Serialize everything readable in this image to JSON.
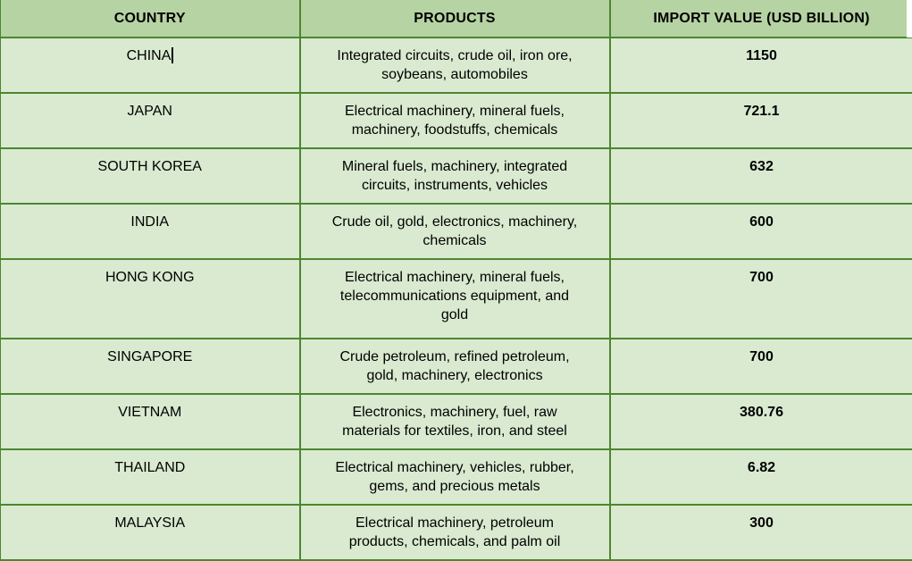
{
  "table": {
    "columns": [
      "COUNTRY",
      "PRODUCTS",
      "IMPORT VALUE (USD BILLION)"
    ],
    "rows": [
      {
        "country": "CHINA",
        "products": "Integrated circuits, crude oil, iron ore,\nsoybeans, automobiles",
        "value": "1150"
      },
      {
        "country": "JAPAN",
        "products": "Electrical machinery, mineral fuels,\nmachinery, foodstuffs, chemicals",
        "value": "721.1"
      },
      {
        "country": "SOUTH KOREA",
        "products": "Mineral fuels, machinery, integrated\ncircuits, instruments, vehicles",
        "value": "632"
      },
      {
        "country": "INDIA",
        "products": "Crude oil, gold, electronics, machinery,\nchemicals",
        "value": "600"
      },
      {
        "country": "HONG KONG",
        "products": "Electrical machinery, mineral fuels,\ntelecommunications equipment, and\ngold",
        "value": "700"
      },
      {
        "country": "SINGAPORE",
        "products": "Crude petroleum, refined petroleum,\ngold, machinery, electronics",
        "value": "700"
      },
      {
        "country": "VIETNAM",
        "products": "Electronics, machinery, fuel, raw\nmaterials for textiles, iron, and steel",
        "value": "380.76"
      },
      {
        "country": "THAILAND",
        "products": "Electrical machinery, vehicles, rubber,\ngems, and precious metals",
        "value": "6.82"
      },
      {
        "country": "MALAYSIA",
        "products": "Electrical machinery, petroleum\nproducts, chemicals, and palm oil",
        "value": "300"
      }
    ],
    "colors": {
      "header_bg": "#b6d3a3",
      "row_bg": "#d9ead0",
      "border": "#4d8631",
      "text": "#000000",
      "page_bg": "#ffffff"
    }
  },
  "editor": {
    "caret_row_index": 0,
    "caret_after_text": "CHINA"
  }
}
